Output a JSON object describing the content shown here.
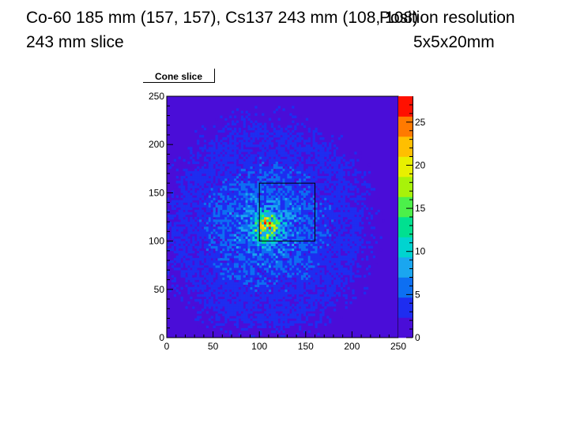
{
  "slide": {
    "title_line1": "Co-60 185 mm (157, 157), Cs137 243 mm (108, 108)",
    "title_line2": "243 mm slice",
    "side_line1": "Position resolution",
    "side_line2": "5x5x20mm"
  },
  "chart_data": {
    "type": "heatmap",
    "title": "Cone slice",
    "xlabel": "",
    "ylabel": "",
    "xlim": [
      0,
      250
    ],
    "ylim": [
      0,
      250
    ],
    "x_ticks": [
      0,
      50,
      100,
      150,
      200,
      250
    ],
    "y_ticks": [
      0,
      50,
      100,
      150,
      200,
      250
    ],
    "hotspot": {
      "x": 108,
      "y": 115
    },
    "overlay_box": {
      "x": [
        100,
        160
      ],
      "y": [
        100,
        160
      ]
    },
    "colorbar": {
      "range": [
        0,
        28
      ],
      "ticks": [
        0,
        5,
        10,
        15,
        20,
        25
      ],
      "colors": [
        "#4a0dd8",
        "#1e2df0",
        "#0d6ff2",
        "#1aa6f0",
        "#00d4d0",
        "#00e090",
        "#4cf04a",
        "#a8f20a",
        "#e8f000",
        "#ffbf00",
        "#ff7a00",
        "#ff1000"
      ]
    }
  }
}
